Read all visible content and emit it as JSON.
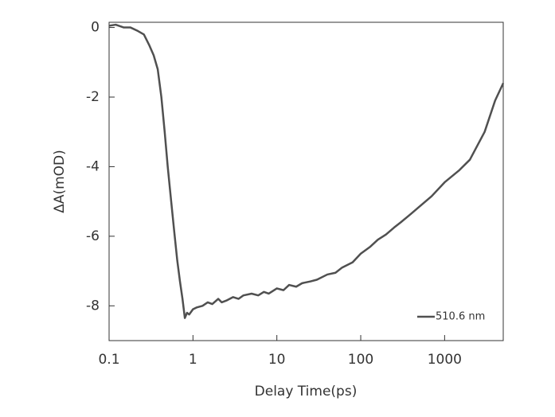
{
  "chart_data": {
    "type": "line",
    "xlabel": "Delay Time(ps)",
    "ylabel": "ΔA(mOD)",
    "xscale": "log",
    "xlim": [
      0.1,
      5000
    ],
    "ylim": [
      -9,
      0.15
    ],
    "xticks": [
      0.1,
      1,
      10,
      100,
      1000
    ],
    "yticks": [
      0,
      -2,
      -4,
      -6,
      -8
    ],
    "legend": "lower right",
    "x": [
      0.1,
      0.12,
      0.15,
      0.18,
      0.22,
      0.26,
      0.3,
      0.34,
      0.38,
      0.42,
      0.46,
      0.5,
      0.55,
      0.6,
      0.65,
      0.7,
      0.75,
      0.8,
      0.85,
      0.9,
      1.0,
      1.1,
      1.3,
      1.5,
      1.7,
      2.0,
      2.2,
      2.5,
      3,
      3.5,
      4,
      5,
      6,
      7,
      8,
      10,
      12,
      14,
      17,
      20,
      25,
      30,
      40,
      50,
      60,
      80,
      100,
      130,
      160,
      200,
      250,
      300,
      400,
      500,
      700,
      1000,
      1500,
      2000,
      3000,
      4000,
      5000
    ],
    "series": [
      {
        "name": "510.6 nm",
        "color": "#505050",
        "values": [
          0.05,
          0.08,
          0,
          0,
          -0.1,
          -0.2,
          -0.5,
          -0.8,
          -1.2,
          -2.0,
          -3.0,
          -4.0,
          -5.0,
          -5.9,
          -6.7,
          -7.3,
          -7.8,
          -8.35,
          -8.2,
          -8.25,
          -8.1,
          -8.05,
          -8.0,
          -7.9,
          -7.95,
          -7.8,
          -7.9,
          -7.85,
          -7.75,
          -7.8,
          -7.7,
          -7.65,
          -7.7,
          -7.6,
          -7.65,
          -7.5,
          -7.55,
          -7.4,
          -7.45,
          -7.35,
          -7.3,
          -7.25,
          -7.1,
          -7.05,
          -6.9,
          -6.75,
          -6.5,
          -6.3,
          -6.1,
          -5.95,
          -5.75,
          -5.6,
          -5.35,
          -5.15,
          -4.85,
          -4.45,
          -4.1,
          -3.8,
          -3.0,
          -2.1,
          -1.6
        ]
      }
    ]
  }
}
